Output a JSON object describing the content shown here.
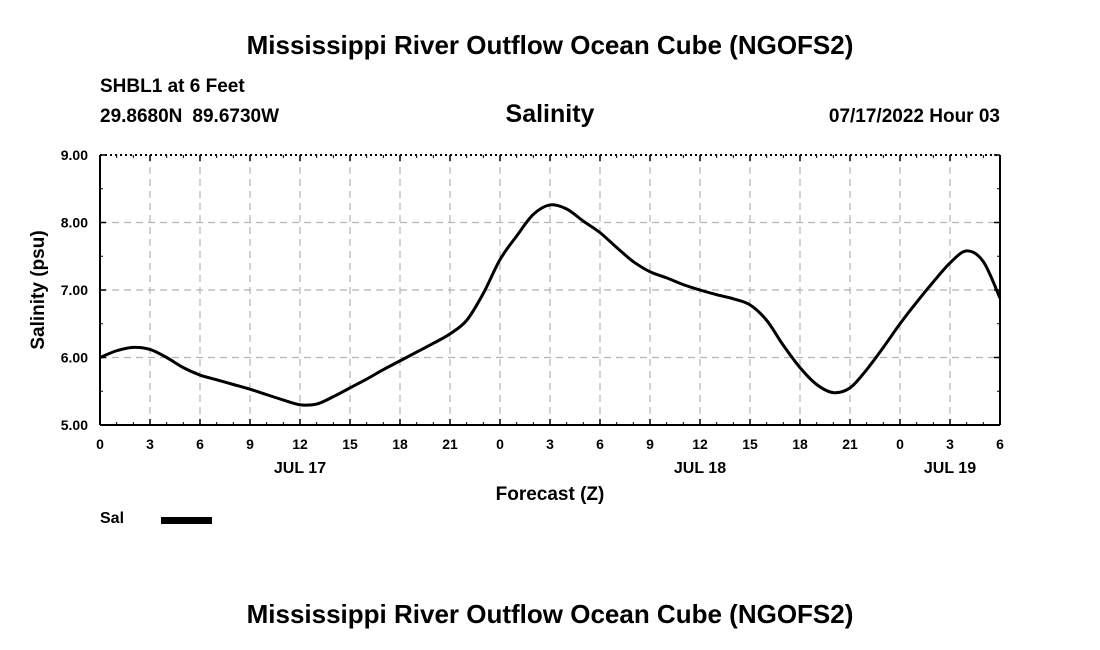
{
  "header": {
    "title": "Mississippi River Outflow Ocean Cube (NGOFS2)",
    "station": "SHBL1 at 6 Feet",
    "lat": "29.8680N",
    "lon": "89.6730W",
    "subtitle": "Salinity",
    "datetime": "07/17/2022 Hour 03"
  },
  "footer": {
    "title": "Mississippi River Outflow Ocean Cube (NGOFS2)"
  },
  "chart_data": {
    "type": "line",
    "title": "Salinity",
    "xlabel": "Forecast (Z)",
    "ylabel": "Salinity (psu)",
    "xlim": [
      0,
      54
    ],
    "ylim": [
      5.0,
      9.0
    ],
    "grid": true,
    "x_ticks": [
      0,
      3,
      6,
      9,
      12,
      15,
      18,
      21,
      24,
      27,
      30,
      33,
      36,
      39,
      42,
      45,
      48,
      51,
      54
    ],
    "x_tick_labels": [
      "0",
      "3",
      "6",
      "9",
      "12",
      "15",
      "18",
      "21",
      "0",
      "3",
      "6",
      "9",
      "12",
      "15",
      "18",
      "21",
      "0",
      "3",
      "6"
    ],
    "y_ticks": [
      5.0,
      6.0,
      7.0,
      8.0,
      9.0
    ],
    "y_tick_labels": [
      "5.00",
      "6.00",
      "7.00",
      "8.00",
      "9.00"
    ],
    "day_labels": [
      {
        "x": 12,
        "label": "JUL 17"
      },
      {
        "x": 36,
        "label": "JUL 18"
      },
      {
        "x": 51,
        "label": "JUL 19"
      }
    ],
    "series": [
      {
        "name": "Sal",
        "color": "#000000",
        "x": [
          0,
          1,
          2,
          3,
          4,
          5,
          6,
          7,
          8,
          9,
          10,
          11,
          12,
          13,
          14,
          15,
          16,
          17,
          18,
          19,
          20,
          21,
          22,
          23,
          24,
          25,
          26,
          27,
          28,
          29,
          30,
          31,
          32,
          33,
          34,
          35,
          36,
          37,
          38,
          39,
          40,
          41,
          42,
          43,
          44,
          45,
          46,
          47,
          48,
          49,
          50,
          51,
          52,
          53,
          54
        ],
        "values": [
          6.0,
          6.1,
          6.15,
          6.12,
          6.0,
          5.85,
          5.74,
          5.67,
          5.6,
          5.53,
          5.45,
          5.37,
          5.3,
          5.31,
          5.42,
          5.55,
          5.68,
          5.82,
          5.95,
          6.08,
          6.21,
          6.35,
          6.55,
          6.95,
          7.45,
          7.8,
          8.12,
          8.26,
          8.2,
          8.02,
          7.85,
          7.63,
          7.42,
          7.27,
          7.18,
          7.08,
          7.0,
          6.93,
          6.87,
          6.78,
          6.55,
          6.18,
          5.85,
          5.6,
          5.48,
          5.55,
          5.82,
          6.15,
          6.5,
          6.82,
          7.12,
          7.4,
          7.58,
          7.42,
          6.88
        ]
      }
    ],
    "legend": [
      {
        "label": "Sal"
      }
    ]
  }
}
